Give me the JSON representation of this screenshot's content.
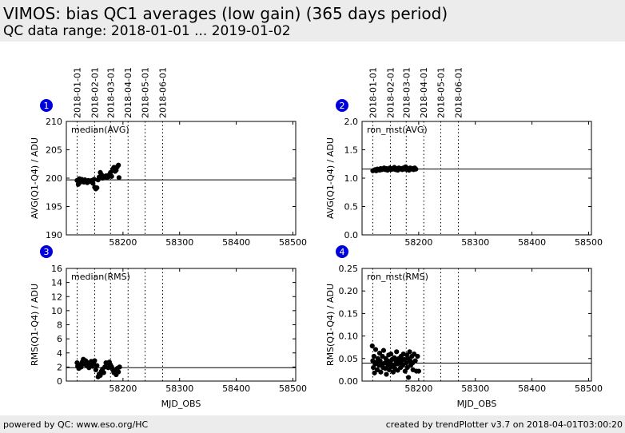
{
  "header": {
    "title": "VIMOS: bias QC1 averages (low gain) (365 days period)",
    "subtitle": "QC data range: 2018-01-01 ... 2019-01-02"
  },
  "footer": {
    "left": "powered by QC: www.eso.org/HC",
    "right": "created by trendPlotter v3.7 on 2018-04-01T03:00:20"
  },
  "date_markers": [
    {
      "label": "2018-01-01",
      "mjd": 58119
    },
    {
      "label": "2018-02-01",
      "mjd": 58150
    },
    {
      "label": "2018-03-01",
      "mjd": 58178
    },
    {
      "label": "2018-04-01",
      "mjd": 58209
    },
    {
      "label": "2018-05-01",
      "mjd": 58239
    },
    {
      "label": "2018-06-01",
      "mjd": 58270
    }
  ],
  "chart_data": [
    {
      "type": "scatter",
      "panel_number": "1",
      "annotation": "median(AVG)",
      "ylabel": "AVG(Q1-Q4) / ADU",
      "xlabel": "",
      "xlim": [
        58100,
        58505
      ],
      "ylim": [
        190,
        210
      ],
      "xticks": [
        58200,
        58300,
        58400,
        58500
      ],
      "yticks": [
        190,
        195,
        200,
        205,
        210
      ],
      "yticklabels": [
        "190",
        "195",
        "200",
        "205",
        "210"
      ],
      "reference_line": 199.7,
      "points": [
        [
          58119,
          199.6
        ],
        [
          58121,
          198.9
        ],
        [
          58123,
          199.9
        ],
        [
          58125,
          199.3
        ],
        [
          58127,
          199.8
        ],
        [
          58129,
          199.5
        ],
        [
          58131,
          199.3
        ],
        [
          58133,
          199.7
        ],
        [
          58135,
          199.4
        ],
        [
          58137,
          199.2
        ],
        [
          58139,
          199.6
        ],
        [
          58141,
          199.5
        ],
        [
          58143,
          199.4
        ],
        [
          58145,
          199.6
        ],
        [
          58147,
          199.1
        ],
        [
          58149,
          199.8
        ],
        [
          58150,
          198.4
        ],
        [
          58152,
          198.1
        ],
        [
          58154,
          198.3
        ],
        [
          58156,
          199.7
        ],
        [
          58158,
          200.2
        ],
        [
          58160,
          201.0
        ],
        [
          58162,
          200.6
        ],
        [
          58164,
          200.0
        ],
        [
          58166,
          200.3
        ],
        [
          58168,
          200.2
        ],
        [
          58170,
          200.4
        ],
        [
          58172,
          200.1
        ],
        [
          58174,
          200.5
        ],
        [
          58176,
          200.3
        ],
        [
          58178,
          201.0
        ],
        [
          58180,
          200.3
        ],
        [
          58182,
          201.6
        ],
        [
          58184,
          201.9
        ],
        [
          58186,
          201.2
        ],
        [
          58188,
          201.4
        ],
        [
          58190,
          202.0
        ],
        [
          58192,
          202.3
        ],
        [
          58193,
          200.1
        ]
      ]
    },
    {
      "type": "scatter",
      "panel_number": "2",
      "annotation": "ron_mst(AVG)",
      "ylabel": "AVG(Q1-Q4) / ADU",
      "xlabel": "",
      "xlim": [
        58100,
        58505
      ],
      "ylim": [
        0,
        2
      ],
      "xticks": [
        58200,
        58300,
        58400,
        58500
      ],
      "yticks": [
        0,
        0.5,
        1.0,
        1.5,
        2.0
      ],
      "yticklabels": [
        "0.0",
        "0.5",
        "1.0",
        "1.5",
        "2.0"
      ],
      "reference_line": 1.16,
      "points": [
        [
          58119,
          1.13
        ],
        [
          58121,
          1.14
        ],
        [
          58123,
          1.15
        ],
        [
          58125,
          1.13
        ],
        [
          58127,
          1.16
        ],
        [
          58129,
          1.15
        ],
        [
          58131,
          1.14
        ],
        [
          58133,
          1.17
        ],
        [
          58135,
          1.15
        ],
        [
          58137,
          1.16
        ],
        [
          58139,
          1.18
        ],
        [
          58141,
          1.15
        ],
        [
          58143,
          1.17
        ],
        [
          58145,
          1.14
        ],
        [
          58147,
          1.16
        ],
        [
          58149,
          1.18
        ],
        [
          58151,
          1.15
        ],
        [
          58153,
          1.17
        ],
        [
          58155,
          1.16
        ],
        [
          58157,
          1.19
        ],
        [
          58159,
          1.15
        ],
        [
          58161,
          1.17
        ],
        [
          58163,
          1.14
        ],
        [
          58165,
          1.18
        ],
        [
          58167,
          1.16
        ],
        [
          58169,
          1.17
        ],
        [
          58171,
          1.15
        ],
        [
          58173,
          1.18
        ],
        [
          58175,
          1.16
        ],
        [
          58177,
          1.2
        ],
        [
          58179,
          1.15
        ],
        [
          58181,
          1.17
        ],
        [
          58183,
          1.14
        ],
        [
          58185,
          1.18
        ],
        [
          58187,
          1.16
        ],
        [
          58189,
          1.17
        ],
        [
          58191,
          1.15
        ],
        [
          58193,
          1.18
        ],
        [
          58195,
          1.16
        ]
      ]
    },
    {
      "type": "scatter",
      "panel_number": "3",
      "annotation": "median(RMS)",
      "ylabel": "RMS(Q1-Q4) / ADU",
      "xlabel": "MJD_OBS",
      "xlim": [
        58100,
        58505
      ],
      "ylim": [
        0,
        16
      ],
      "xticks": [
        58200,
        58300,
        58400,
        58500
      ],
      "yticks": [
        0,
        2,
        4,
        6,
        8,
        10,
        12,
        14,
        16
      ],
      "yticklabels": [
        "0",
        "2",
        "4",
        "6",
        "8",
        "10",
        "12",
        "14",
        "16"
      ],
      "reference_line": 1.9,
      "points": [
        [
          58119,
          2.6
        ],
        [
          58120,
          2.1
        ],
        [
          58122,
          1.8
        ],
        [
          58124,
          2.3
        ],
        [
          58126,
          2.0
        ],
        [
          58128,
          2.7
        ],
        [
          58130,
          3.1
        ],
        [
          58132,
          2.4
        ],
        [
          58134,
          2.9
        ],
        [
          58136,
          2.2
        ],
        [
          58138,
          2.6
        ],
        [
          58140,
          1.9
        ],
        [
          58142,
          2.4
        ],
        [
          58144,
          2.8
        ],
        [
          58146,
          2.1
        ],
        [
          58148,
          2.5
        ],
        [
          58150,
          2.9
        ],
        [
          58152,
          1.6
        ],
        [
          58154,
          2.2
        ],
        [
          58156,
          0.6
        ],
        [
          58158,
          1.0
        ],
        [
          58160,
          0.8
        ],
        [
          58162,
          1.4
        ],
        [
          58164,
          1.7
        ],
        [
          58166,
          1.2
        ],
        [
          58168,
          2.0
        ],
        [
          58170,
          2.6
        ],
        [
          58172,
          2.2
        ],
        [
          58174,
          1.9
        ],
        [
          58176,
          2.7
        ],
        [
          58178,
          2.3
        ],
        [
          58180,
          2.0
        ],
        [
          58182,
          1.6
        ],
        [
          58184,
          1.2
        ],
        [
          58186,
          1.4
        ],
        [
          58188,
          0.9
        ],
        [
          58190,
          1.8
        ],
        [
          58192,
          1.3
        ],
        [
          58194,
          2.0
        ]
      ]
    },
    {
      "type": "scatter",
      "panel_number": "4",
      "annotation": "ron_mst(RMS)",
      "ylabel": "RMS(Q1-Q4) / ADU",
      "xlabel": "MJD_OBS",
      "xlim": [
        58100,
        58505
      ],
      "ylim": [
        0,
        0.25
      ],
      "xticks": [
        58200,
        58300,
        58400,
        58500
      ],
      "yticks": [
        0,
        0.05,
        0.1,
        0.15,
        0.2,
        0.25
      ],
      "yticklabels": [
        "0.00",
        "0.05",
        "0.10",
        "0.15",
        "0.20",
        "0.25"
      ],
      "reference_line": 0.04,
      "points": [
        [
          58118,
          0.078
        ],
        [
          58119,
          0.045
        ],
        [
          58120,
          0.03
        ],
        [
          58121,
          0.055
        ],
        [
          58122,
          0.018
        ],
        [
          58123,
          0.038
        ],
        [
          58124,
          0.07
        ],
        [
          58126,
          0.042
        ],
        [
          58127,
          0.025
        ],
        [
          58128,
          0.05
        ],
        [
          58130,
          0.035
        ],
        [
          58131,
          0.062
        ],
        [
          58132,
          0.045
        ],
        [
          58133,
          0.02
        ],
        [
          58135,
          0.038
        ],
        [
          58136,
          0.055
        ],
        [
          58137,
          0.03
        ],
        [
          58138,
          0.068
        ],
        [
          58140,
          0.04
        ],
        [
          58141,
          0.028
        ],
        [
          58142,
          0.05
        ],
        [
          58143,
          0.015
        ],
        [
          58145,
          0.045
        ],
        [
          58146,
          0.035
        ],
        [
          58147,
          0.058
        ],
        [
          58148,
          0.025
        ],
        [
          58150,
          0.042
        ],
        [
          58151,
          0.06
        ],
        [
          58152,
          0.032
        ],
        [
          58153,
          0.048
        ],
        [
          58155,
          0.02
        ],
        [
          58156,
          0.036
        ],
        [
          58157,
          0.052
        ],
        [
          58158,
          0.028
        ],
        [
          58160,
          0.045
        ],
        [
          58161,
          0.065
        ],
        [
          58162,
          0.038
        ],
        [
          58163,
          0.024
        ],
        [
          58165,
          0.05
        ],
        [
          58166,
          0.04
        ],
        [
          58168,
          0.03
        ],
        [
          58169,
          0.055
        ],
        [
          58170,
          0.045
        ],
        [
          58172,
          0.035
        ],
        [
          58173,
          0.06
        ],
        [
          58175,
          0.048
        ],
        [
          58176,
          0.022
        ],
        [
          58178,
          0.04
        ],
        [
          58179,
          0.058
        ],
        [
          58180,
          0.03
        ],
        [
          58181,
          0.05
        ],
        [
          58182,
          0.008
        ],
        [
          58184,
          0.065
        ],
        [
          58185,
          0.045
        ],
        [
          58186,
          0.035
        ],
        [
          58188,
          0.055
        ],
        [
          58189,
          0.04
        ],
        [
          58190,
          0.025
        ],
        [
          58192,
          0.06
        ],
        [
          58194,
          0.045
        ],
        [
          58196,
          0.022
        ],
        [
          58198,
          0.055
        ],
        [
          58200,
          0.022
        ]
      ]
    }
  ]
}
